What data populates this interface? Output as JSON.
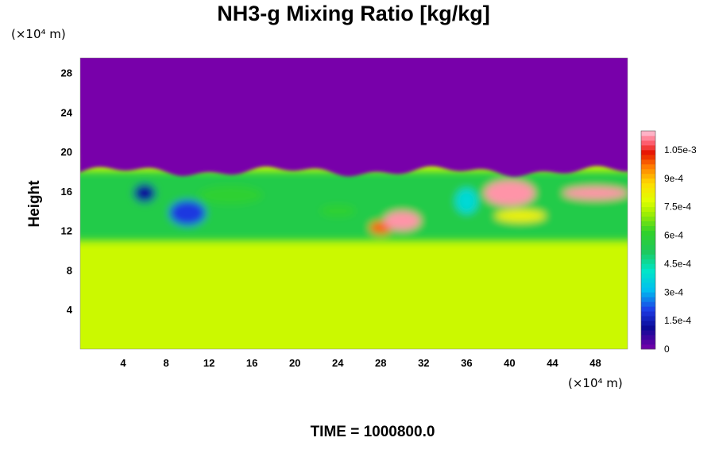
{
  "chart_data": {
    "type": "heatmap",
    "title": "NH3-g Mixing Ratio [kg/kg]",
    "xlabel": "",
    "ylabel": "Height",
    "x_unit": "(×10⁴ m)",
    "y_unit": "(×10⁴ m)",
    "x_ticks": [
      4,
      8,
      12,
      16,
      20,
      24,
      28,
      32,
      36,
      40,
      44,
      48
    ],
    "y_ticks": [
      4,
      8,
      12,
      16,
      20,
      24,
      28
    ],
    "xlim": [
      0,
      51
    ],
    "ylim": [
      0,
      29.5
    ],
    "colorbar": {
      "ticks": [
        {
          "label": "1.05e-3",
          "value": 0.00105
        },
        {
          "label": "9e-4",
          "value": 0.0009
        },
        {
          "label": "7.5e-4",
          "value": 0.00075
        },
        {
          "label": "6e-4",
          "value": 0.0006
        },
        {
          "label": "4.5e-4",
          "value": 0.00045
        },
        {
          "label": "3e-4",
          "value": 0.0003
        },
        {
          "label": "1.5e-4",
          "value": 0.00015
        },
        {
          "label": "0",
          "value": 0
        }
      ],
      "range": [
        0,
        0.00115
      ]
    },
    "background_value": 0.00076,
    "upper_value": 0,
    "layer_bottom": 11,
    "layer_top": 18,
    "features": [
      {
        "x": 28,
        "y": 12.3,
        "value": 0.00098
      },
      {
        "x": 30,
        "y": 13.0,
        "value": 0.00112
      },
      {
        "x": 40,
        "y": 15.8,
        "value": 0.00112
      },
      {
        "x": 48,
        "y": 15.8,
        "value": 0.00112
      },
      {
        "x": 6,
        "y": 15.8,
        "value": 0.00012
      },
      {
        "x": 10,
        "y": 13.8,
        "value": 0.0002
      },
      {
        "x": 41,
        "y": 13.5,
        "value": 0.00082
      },
      {
        "x": 14,
        "y": 15.6,
        "value": 0.0006
      },
      {
        "x": 36,
        "y": 15.0,
        "value": 0.00038
      },
      {
        "x": 24,
        "y": 14.0,
        "value": 0.0006
      }
    ]
  },
  "footer": {
    "time_label": "TIME = 1000800.0"
  }
}
